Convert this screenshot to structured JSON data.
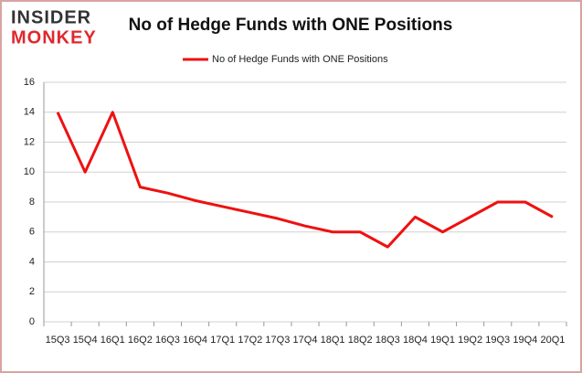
{
  "brand": {
    "top": "INSIDER",
    "bottom": "MONKEY"
  },
  "chart_data": {
    "type": "line",
    "title": "No of Hedge Funds with ONE Positions",
    "categories": [
      "15Q3",
      "15Q4",
      "16Q1",
      "16Q2",
      "16Q3",
      "16Q4",
      "17Q1",
      "17Q2",
      "17Q3",
      "17Q4",
      "18Q1",
      "18Q2",
      "18Q3",
      "18Q4",
      "19Q1",
      "19Q2",
      "19Q3",
      "19Q4",
      "20Q1"
    ],
    "series": [
      {
        "name": "No of Hedge Funds with ONE Positions",
        "color": "#ee1111",
        "values": [
          14,
          10,
          14,
          9,
          8.6,
          8.1,
          7.7,
          7.3,
          6.9,
          6.4,
          6,
          6,
          5,
          7,
          6,
          7,
          8,
          8,
          7
        ]
      }
    ],
    "ylim": [
      0,
      16
    ],
    "yticks": [
      0,
      2,
      4,
      6,
      8,
      10,
      12,
      14,
      16
    ],
    "grid": true,
    "legend": "top"
  }
}
